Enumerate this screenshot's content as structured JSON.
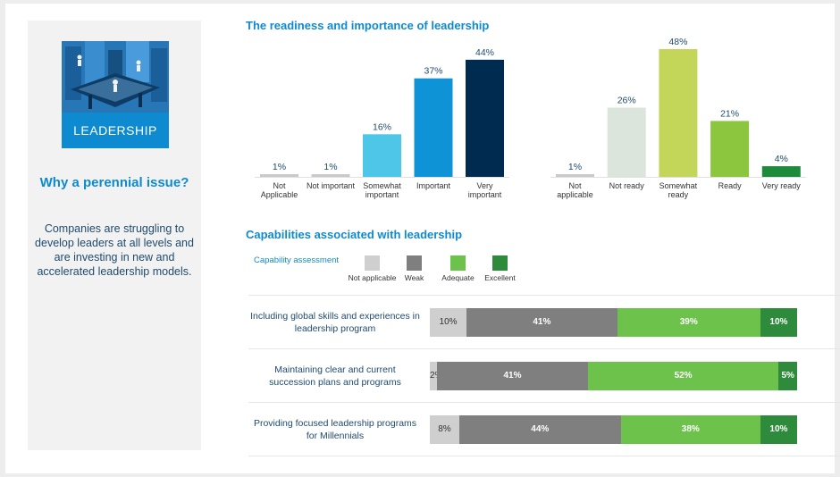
{
  "sidebar": {
    "logo_label": "LEADERSHIP",
    "title": "Why a perennial issue?",
    "text": "Companies are struggling to develop leaders at all levels and are investing in new and accelerated leadership models."
  },
  "colors": {
    "accent": "#0e8ad0",
    "importance": [
      "#c9c9c9",
      "#c9c9c9",
      "#4ec6e8",
      "#0e94d6",
      "#002b50"
    ],
    "readiness": [
      "#c9c9c9",
      "#dce5dc",
      "#c4d65a",
      "#8cc63f",
      "#1e8a3c"
    ],
    "capability": [
      "#cfcfcf",
      "#7f7f7f",
      "#6cc24a",
      "#2e8b3b"
    ]
  },
  "chart_data": [
    {
      "type": "bar",
      "title": "The readiness and importance of leadership",
      "categories": [
        "Not Applicable",
        "Not important",
        "Somewhat important",
        "Important",
        "Very important"
      ],
      "values": [
        1,
        1,
        16,
        37,
        44
      ],
      "labels": [
        "1%",
        "1%",
        "16%",
        "37%",
        "44%"
      ]
    },
    {
      "type": "bar",
      "categories": [
        "Not applicable",
        "Not ready",
        "Somewhat ready",
        "Ready",
        "Very ready"
      ],
      "values": [
        1,
        26,
        48,
        21,
        4
      ],
      "labels": [
        "1%",
        "26%",
        "48%",
        "21%",
        "4%"
      ]
    },
    {
      "type": "bar",
      "stacked": true,
      "orientation": "horizontal",
      "title": "Capabilities associated with leadership",
      "legend_title": "Capability assessment",
      "series_names": [
        "Not applicable",
        "Weak",
        "Adequate",
        "Excellent"
      ],
      "categories": [
        "Including global skills and experiences in leadership program",
        "Maintaining clear and current succession plans and programs",
        "Providing focused leadership programs for Millennials"
      ],
      "values": [
        [
          10,
          41,
          39,
          10
        ],
        [
          2,
          41,
          52,
          5
        ],
        [
          8,
          44,
          38,
          10
        ]
      ],
      "labels": [
        [
          "10%",
          "41%",
          "39%",
          "10%"
        ],
        [
          "2%",
          "41%",
          "52%",
          "5%"
        ],
        [
          "8%",
          "44%",
          "38%",
          "10%"
        ]
      ]
    }
  ]
}
